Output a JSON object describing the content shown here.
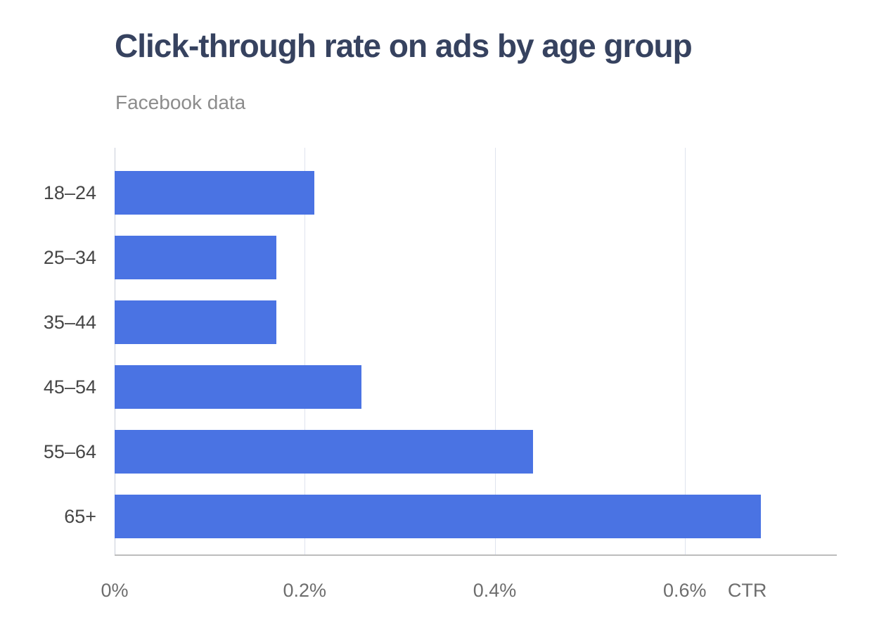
{
  "header": {
    "title": "Click-through rate on ads by age group",
    "subtitle": "Facebook data"
  },
  "chart_data": {
    "type": "bar",
    "orientation": "horizontal",
    "title": "Click-through rate on ads by age group",
    "subtitle": "Facebook data",
    "categories": [
      "18–24",
      "25–34",
      "35–44",
      "45–54",
      "55–64",
      "65+"
    ],
    "values": [
      0.21,
      0.17,
      0.17,
      0.26,
      0.44,
      0.68
    ],
    "unit": "%",
    "xlabel": "CTR",
    "x_ticks": [
      {
        "value": 0,
        "label": "0%"
      },
      {
        "value": 0.2,
        "label": "0.2%"
      },
      {
        "value": 0.4,
        "label": "0.4%"
      },
      {
        "value": 0.6,
        "label": "0.6%"
      }
    ],
    "xlim": [
      0,
      0.76
    ],
    "grid": "vertical",
    "legend": "none",
    "colors": {
      "bar": "#4a73e3",
      "title": "#36425f",
      "subtitle": "#8c8c8c",
      "grid": "#dfe3ee",
      "axis_line": "#bdbdbd",
      "tick_label": "#6d6d6d",
      "category_label": "#464646"
    }
  }
}
